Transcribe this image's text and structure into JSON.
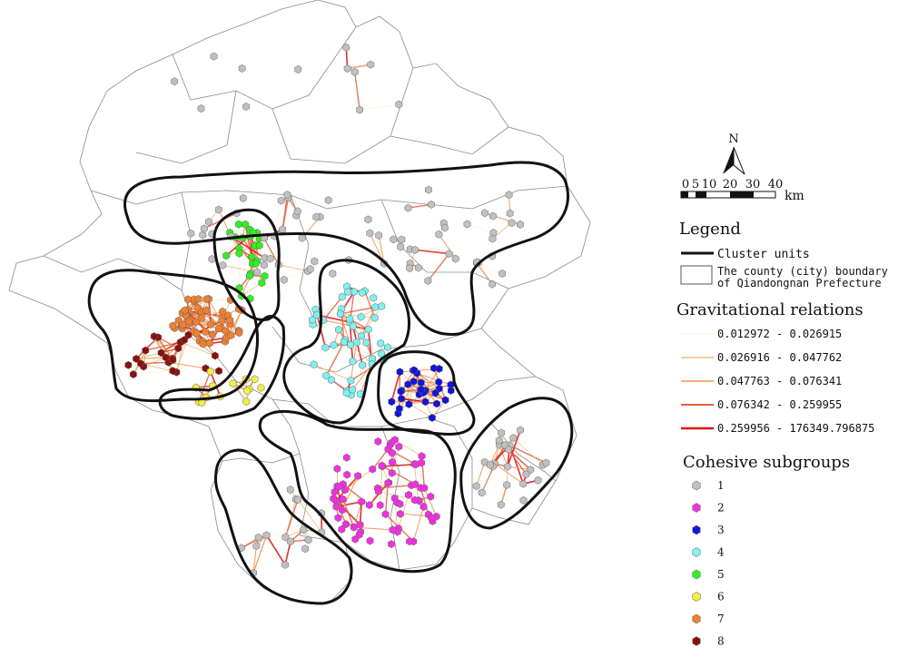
{
  "north_label": "N",
  "scale_bar": {
    "ticks": [
      "0",
      "5",
      "10",
      "20",
      "30",
      "40"
    ],
    "unit": "km"
  },
  "legend": {
    "title": "Legend",
    "cluster_units": "Cluster units",
    "county_boundary_line1": "The county (city) boundary",
    "county_boundary_line2": "of Qiandongnan Prefecture"
  },
  "gravitational": {
    "title": "Gravitational relations",
    "classes": [
      {
        "label": "0.012972 - 0.026915",
        "color": "#fde7c8",
        "width": 0.8
      },
      {
        "label": "0.026916 - 0.047762",
        "color": "#e8b060",
        "width": 1.2
      },
      {
        "label": "0.047763 - 0.076341",
        "color": "#ec9656",
        "width": 1.6
      },
      {
        "label": "0.076342 - 0.259955",
        "color": "#e06040",
        "width": 2.0
      },
      {
        "label": "0.259956 - 176349.796875",
        "color": "#d81818",
        "width": 2.6
      }
    ]
  },
  "subgroups": {
    "title": "Cohesive subgroups",
    "items": [
      {
        "label": "1",
        "color": "#c0c0c0"
      },
      {
        "label": "2",
        "color": "#f030e0"
      },
      {
        "label": "3",
        "color": "#1414d8"
      },
      {
        "label": "4",
        "color": "#80f0f0"
      },
      {
        "label": "5",
        "color": "#30f020"
      },
      {
        "label": "6",
        "color": "#f0f040"
      },
      {
        "label": "7",
        "color": "#f08030"
      },
      {
        "label": "8",
        "color": "#8a1010"
      }
    ]
  }
}
